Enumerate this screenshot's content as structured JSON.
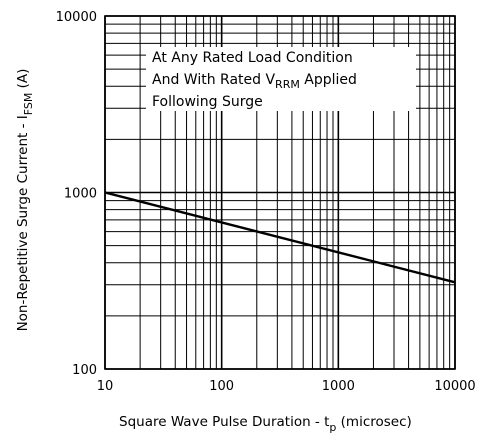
{
  "chart_data": {
    "type": "line",
    "title": "",
    "xscale": "log",
    "yscale": "log",
    "xlim": [
      10,
      10000
    ],
    "ylim": [
      100,
      10000
    ],
    "grid": true,
    "x_ticks": [
      10,
      100,
      1000,
      10000
    ],
    "x_tick_labels": [
      "10",
      "100",
      "1000",
      "10000"
    ],
    "y_ticks": [
      100,
      1000,
      10000
    ],
    "y_tick_labels": [
      "100",
      "1000",
      "10000"
    ],
    "xlabel": {
      "main": "Square Wave Pulse Duration - t",
      "sub": "p",
      "suffix": " (microsec)"
    },
    "ylabel": {
      "main": "Non-Repetitive Surge Current - I",
      "sub": "FSM",
      "suffix": " (A)"
    },
    "annotation": {
      "line1": "At Any Rated Load Condition",
      "line2_before": "And With Rated V",
      "line2_sub": "RRM",
      "line2_after": " Applied",
      "line3": "Following Surge"
    },
    "series": [
      {
        "x": [
          10,
          10000
        ],
        "y": [
          1000,
          310
        ]
      }
    ]
  }
}
